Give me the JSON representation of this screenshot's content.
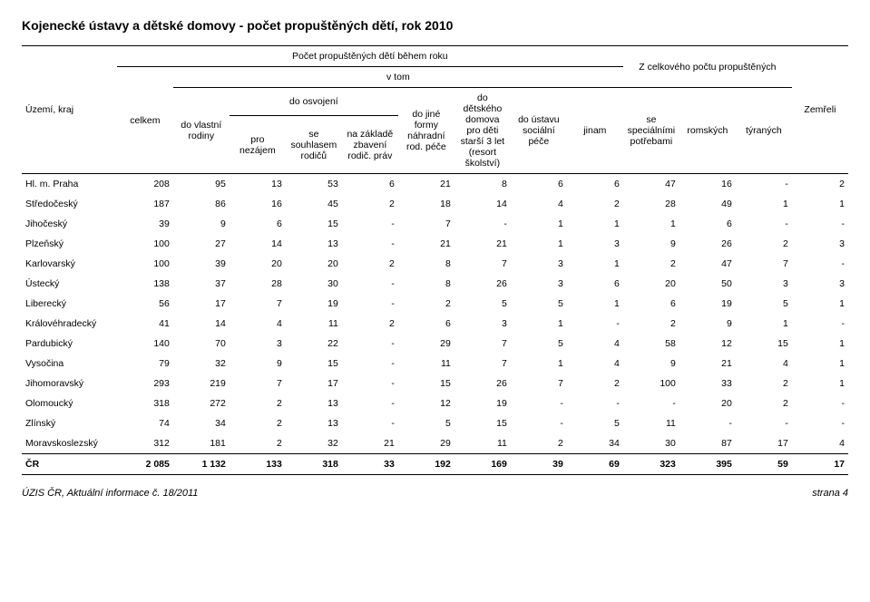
{
  "title": "Kojenecké ústavy a dětské domovy - počet propuštěných dětí, rok 2010",
  "header": {
    "region": "Území, kraj",
    "group_top": "Počet propuštěných dětí během roku",
    "group_vtom": "v tom",
    "group_zcelk": "Z celkového počtu propuštěných",
    "group_osvoj": "do osvojení",
    "celkem": "celkem",
    "vlastni": "do vlastní rodiny",
    "nezajem": "pro nezájem",
    "souhlas": "se souhlasem rodičů",
    "zakonem": "na základě zbavení rodič. práv",
    "formy": "do jiné formy náhradní rod. péče",
    "domova": "do dětského domova pro děti starší 3 let (resort školství)",
    "ustavy": "do ústavu sociální péče",
    "jinam": "jinam",
    "spec": "se speciálními potřebami",
    "rom": "romských",
    "tyr": "týraných",
    "zemreli": "Zemřeli"
  },
  "rows": [
    {
      "label": "Hl. m. Praha",
      "c": [
        "208",
        "95",
        "13",
        "53",
        "6",
        "21",
        "8",
        "6",
        "6",
        "47",
        "16",
        "-",
        "2"
      ]
    },
    {
      "label": "Středočeský",
      "c": [
        "187",
        "86",
        "16",
        "45",
        "2",
        "18",
        "14",
        "4",
        "2",
        "28",
        "49",
        "1",
        "1"
      ]
    },
    {
      "label": "Jihočeský",
      "c": [
        "39",
        "9",
        "6",
        "15",
        "-",
        "7",
        "-",
        "1",
        "1",
        "1",
        "6",
        "-",
        "-"
      ]
    },
    {
      "label": "Plzeňský",
      "c": [
        "100",
        "27",
        "14",
        "13",
        "-",
        "21",
        "21",
        "1",
        "3",
        "9",
        "26",
        "2",
        "3"
      ]
    },
    {
      "label": "Karlovarský",
      "c": [
        "100",
        "39",
        "20",
        "20",
        "2",
        "8",
        "7",
        "3",
        "1",
        "2",
        "47",
        "7",
        "-"
      ]
    },
    {
      "label": "Ústecký",
      "c": [
        "138",
        "37",
        "28",
        "30",
        "-",
        "8",
        "26",
        "3",
        "6",
        "20",
        "50",
        "3",
        "3"
      ]
    },
    {
      "label": "Liberecký",
      "c": [
        "56",
        "17",
        "7",
        "19",
        "-",
        "2",
        "5",
        "5",
        "1",
        "6",
        "19",
        "5",
        "1"
      ]
    },
    {
      "label": "Královéhradecký",
      "c": [
        "41",
        "14",
        "4",
        "11",
        "2",
        "6",
        "3",
        "1",
        "-",
        "2",
        "9",
        "1",
        "-"
      ]
    },
    {
      "label": "Pardubický",
      "c": [
        "140",
        "70",
        "3",
        "22",
        "-",
        "29",
        "7",
        "5",
        "4",
        "58",
        "12",
        "15",
        "1"
      ]
    },
    {
      "label": "Vysočina",
      "c": [
        "79",
        "32",
        "9",
        "15",
        "-",
        "11",
        "7",
        "1",
        "4",
        "9",
        "21",
        "4",
        "1"
      ]
    },
    {
      "label": "Jihomoravský",
      "c": [
        "293",
        "219",
        "7",
        "17",
        "-",
        "15",
        "26",
        "7",
        "2",
        "100",
        "33",
        "2",
        "1"
      ]
    },
    {
      "label": "Olomoucký",
      "c": [
        "318",
        "272",
        "2",
        "13",
        "-",
        "12",
        "19",
        "-",
        "-",
        "-",
        "20",
        "2",
        "-"
      ]
    },
    {
      "label": "Zlínský",
      "c": [
        "74",
        "34",
        "2",
        "13",
        "-",
        "5",
        "15",
        "-",
        "5",
        "11",
        "-",
        "-",
        "-"
      ]
    },
    {
      "label": "Moravskoslezský",
      "c": [
        "312",
        "181",
        "2",
        "32",
        "21",
        "29",
        "11",
        "2",
        "34",
        "30",
        "87",
        "17",
        "4"
      ]
    }
  ],
  "total": {
    "label": "ČR",
    "c": [
      "2 085",
      "1 132",
      "133",
      "318",
      "33",
      "192",
      "169",
      "39",
      "69",
      "323",
      "395",
      "59",
      "17"
    ]
  },
  "footer": {
    "left": "ÚZIS ČR, Aktuální informace č. 18/2011",
    "right": "strana 4"
  }
}
